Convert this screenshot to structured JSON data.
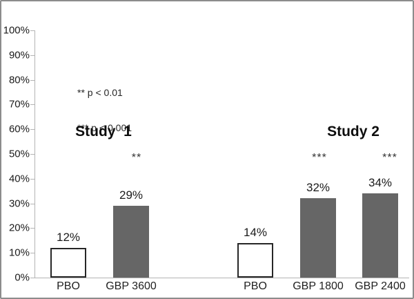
{
  "chart_data": {
    "type": "bar",
    "title": "",
    "xlabel": "",
    "ylabel": "",
    "ylim": [
      0,
      100
    ],
    "grid": false,
    "y_ticks": [
      "100%",
      "90%",
      "80%",
      "70%",
      "60%",
      "50%",
      "40%",
      "30%",
      "20%",
      "10%",
      "0%"
    ],
    "legend_position": "upper-left-inside",
    "legend": [
      "** p < 0.01",
      "*** p < 0.001"
    ],
    "groups": [
      {
        "label": "Study  1",
        "bars": [
          {
            "category": "PBO",
            "value": 12,
            "value_label": "12%",
            "style": "white",
            "significance": ""
          },
          {
            "category": "GBP 3600",
            "value": 29,
            "value_label": "29%",
            "style": "gray",
            "significance": "**"
          }
        ]
      },
      {
        "label": "Study 2",
        "bars": [
          {
            "category": "PBO",
            "value": 14,
            "value_label": "14%",
            "style": "white",
            "significance": ""
          },
          {
            "category": "GBP 1800",
            "value": 32,
            "value_label": "32%",
            "style": "gray",
            "significance": "***"
          },
          {
            "category": "GBP 2400",
            "value": 34,
            "value_label": "34%",
            "style": "gray",
            "significance": "***"
          }
        ]
      }
    ]
  },
  "colors": {
    "bar_gray": "#666666",
    "bar_white_fill": "#ffffff",
    "bar_white_border": "#262626",
    "axis_line": "#b3b3b3",
    "text": "#1a1a1a",
    "frame_border": "#8c8c8c"
  }
}
